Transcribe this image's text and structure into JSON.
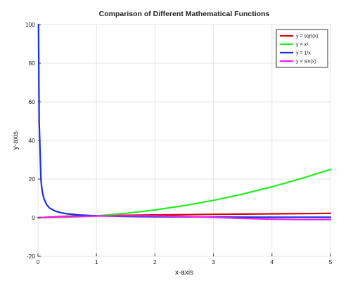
{
  "chart_data": {
    "type": "line",
    "title": "Comparison of Different Mathematical Functions",
    "xlabel": "x-axis",
    "ylabel": "y-axis",
    "xlim": [
      0,
      5
    ],
    "ylim": [
      -20,
      100
    ],
    "xticks": [
      "0",
      "1",
      "2",
      "3",
      "4",
      "5"
    ],
    "yticks": [
      "-20",
      "0",
      "20",
      "40",
      "60",
      "80",
      "100"
    ],
    "grid": true,
    "legend_position": "top-right",
    "series": [
      {
        "name": "y = sqrt(x)",
        "color": "#d40000",
        "x": [
          0,
          0.5,
          1,
          1.5,
          2,
          2.5,
          3,
          3.5,
          4,
          4.5,
          5
        ],
        "y": [
          0,
          0.71,
          1,
          1.22,
          1.41,
          1.58,
          1.73,
          1.87,
          2,
          2.12,
          2.24
        ]
      },
      {
        "name": "y = x²",
        "color": "#22ee22",
        "x": [
          0,
          0.5,
          1,
          1.5,
          2,
          2.5,
          3,
          3.5,
          4,
          4.5,
          5
        ],
        "y": [
          0,
          0.25,
          1,
          2.25,
          4,
          6.25,
          9,
          12.25,
          16,
          20.25,
          25
        ]
      },
      {
        "name": "y = 1/x",
        "color": "#1a2ee6",
        "x": [
          0.01,
          0.02,
          0.05,
          0.06,
          0.08,
          0.1,
          0.15,
          0.2,
          0.3,
          0.4,
          0.5,
          0.7,
          1,
          1.5,
          2,
          3,
          4,
          5
        ],
        "y": [
          100,
          50,
          20,
          16.7,
          12.5,
          10,
          6.67,
          5,
          3.33,
          2.5,
          2,
          1.43,
          1,
          0.67,
          0.5,
          0.33,
          0.25,
          0.2
        ]
      },
      {
        "name": "y = sin(x)",
        "color": "#ee22ee",
        "x": [
          0,
          0.5,
          1,
          1.5,
          2,
          2.5,
          3,
          3.5,
          4,
          4.5,
          5
        ],
        "y": [
          0,
          0.48,
          0.84,
          1,
          0.91,
          0.6,
          0.14,
          -0.35,
          -0.76,
          -0.98,
          -0.96
        ]
      }
    ]
  }
}
